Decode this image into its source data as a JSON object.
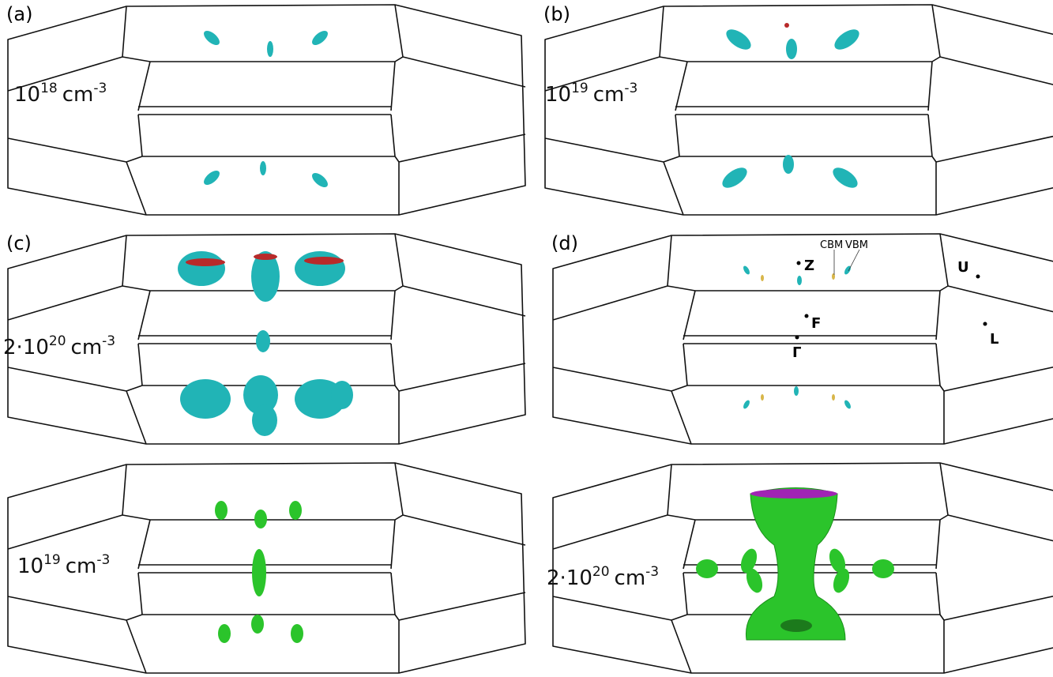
{
  "panels": [
    {
      "tag": "(a)",
      "concentration": {
        "mantissa": "10",
        "exponent": "18",
        "unit": "cm",
        "unit_exponent": "-3"
      }
    },
    {
      "tag": "(b)",
      "concentration": {
        "mantissa": "10",
        "exponent": "19",
        "unit": "cm",
        "unit_exponent": "-3"
      }
    },
    {
      "tag": "(c)",
      "concentration": {
        "prefix": "2·",
        "mantissa": "10",
        "exponent": "20",
        "unit": "cm",
        "unit_exponent": "-3"
      }
    },
    {
      "tag": "(d)",
      "points": [
        "Z",
        "F",
        "Γ",
        "U",
        "L"
      ],
      "annotations": [
        "CBM",
        "VBM"
      ]
    },
    {
      "concentration": {
        "mantissa": "10",
        "exponent": "19",
        "unit": "cm",
        "unit_exponent": "-3"
      }
    },
    {
      "concentration": {
        "prefix": "2·",
        "mantissa": "10",
        "exponent": "20",
        "unit": "cm",
        "unit_exponent": "-3"
      }
    }
  ]
}
